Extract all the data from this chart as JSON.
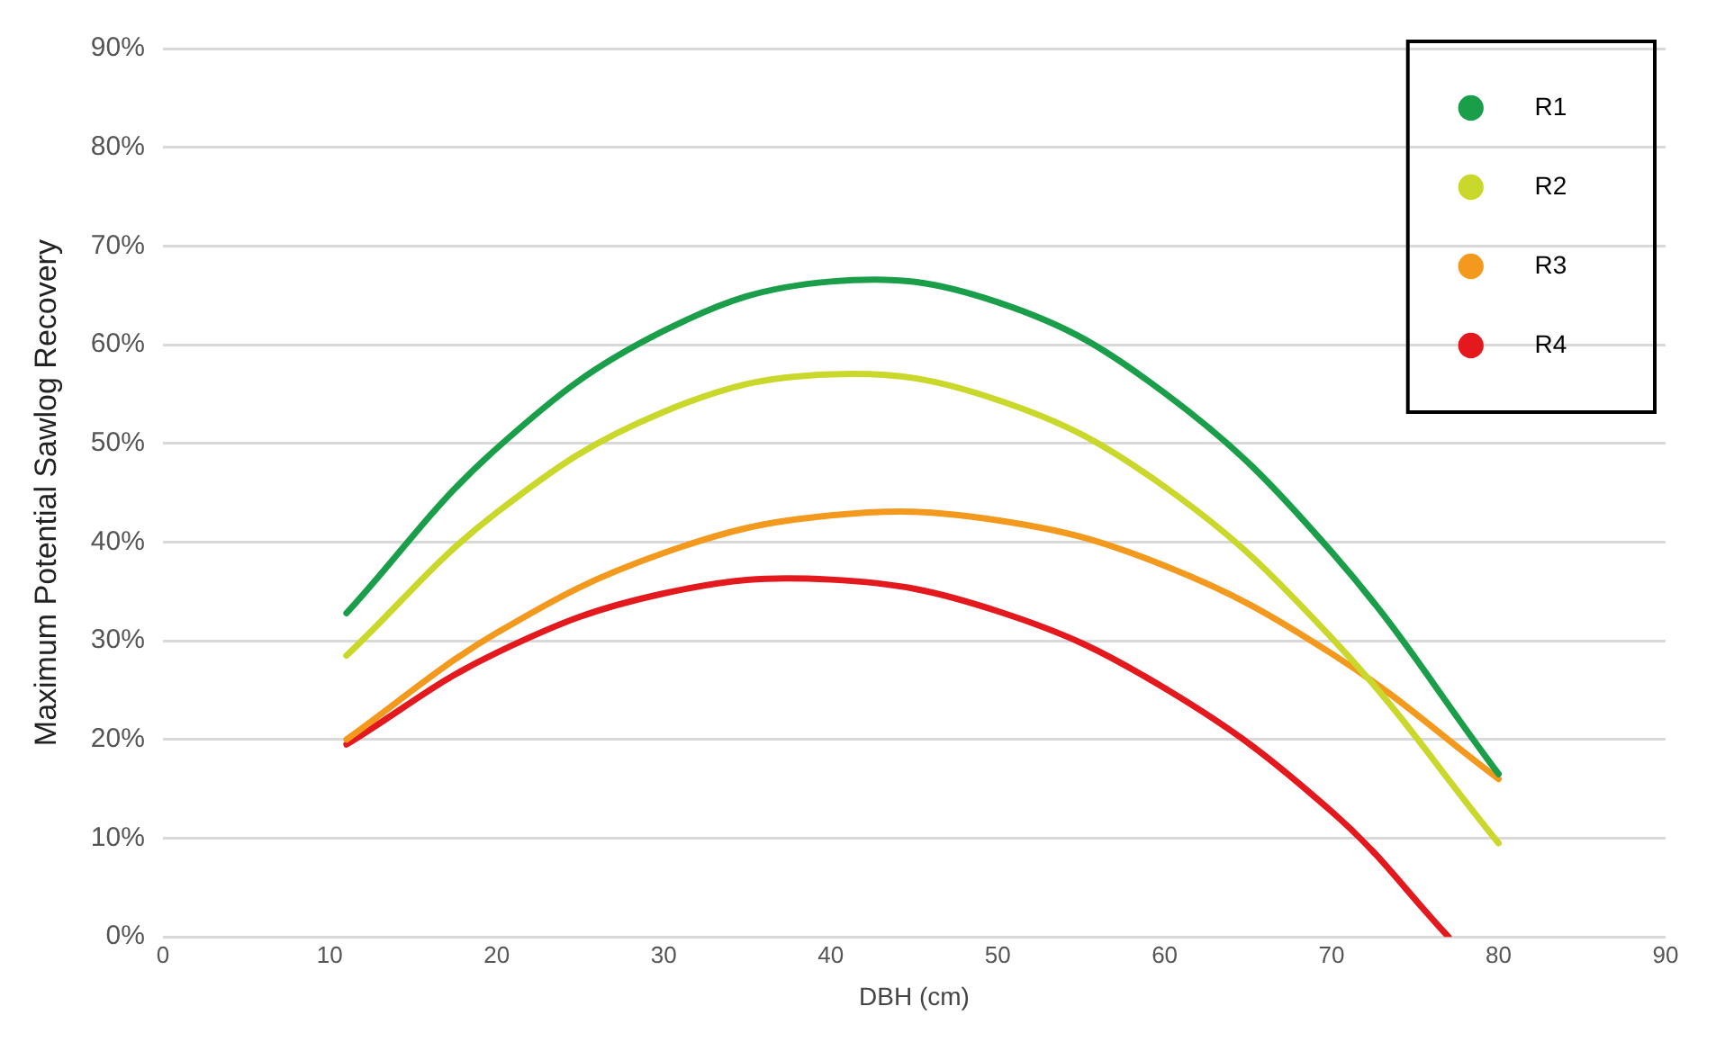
{
  "chart_data": {
    "type": "line",
    "xlabel": "DBH (cm)",
    "ylabel": "Maximum Potential Sawlog Recovery",
    "xlim": [
      0,
      90
    ],
    "xticks": [
      0,
      10,
      20,
      30,
      40,
      50,
      60,
      70,
      80,
      90
    ],
    "ylim": [
      0,
      90
    ],
    "yticks": [
      {
        "value": 0,
        "label": "0%"
      },
      {
        "value": 10,
        "label": "10%"
      },
      {
        "value": 20,
        "label": "20%"
      },
      {
        "value": 30,
        "label": "30%"
      },
      {
        "value": 40,
        "label": "40%"
      },
      {
        "value": 50,
        "label": "50%"
      },
      {
        "value": 60,
        "label": "60%"
      },
      {
        "value": 70,
        "label": "70%"
      },
      {
        "value": 80,
        "label": "80%"
      },
      {
        "value": 90,
        "label": "90%"
      }
    ],
    "grid": "y",
    "legend": "top right",
    "marker": "none",
    "line_style": "solid",
    "series": [
      {
        "name": "R1",
        "color": "#1a9e4a",
        "x": [
          11,
          20,
          30,
          40,
          50,
          60,
          70,
          80
        ],
        "values": [
          32.8,
          49.5,
          61.4,
          66.4,
          64.3,
          55.1,
          39,
          16.5
        ]
      },
      {
        "name": "R2",
        "color": "#c9d82a",
        "x": [
          11,
          20,
          30,
          40,
          50,
          60,
          70,
          80
        ],
        "values": [
          28.5,
          43,
          53.2,
          57,
          54.4,
          45.6,
          30.3,
          9.5
        ]
      },
      {
        "name": "R3",
        "color": "#f39a1e",
        "x": [
          11,
          20,
          30,
          40,
          50,
          60,
          70,
          80
        ],
        "values": [
          20,
          30.8,
          38.9,
          42.7,
          42.2,
          37.6,
          28.7,
          16
        ]
      },
      {
        "name": "R4",
        "color": "#e3191e",
        "x": [
          11,
          20,
          30,
          40,
          50,
          60,
          70,
          77
        ],
        "values": [
          19.5,
          28.8,
          34.8,
          36.2,
          33,
          25.2,
          12.7,
          0
        ]
      }
    ]
  }
}
